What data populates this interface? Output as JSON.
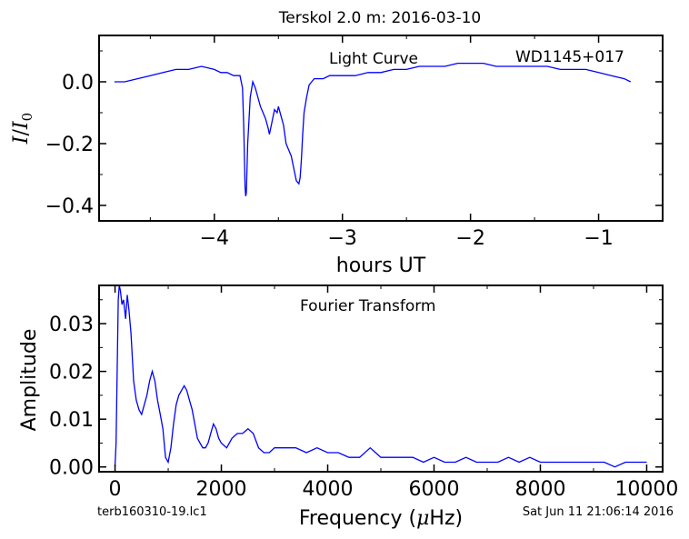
{
  "figure_title": "Terskol 2.0 m:  2016-03-10",
  "footer_left": "terb160310-19.lc1",
  "footer_right": "Sat Jun 11 21:06:14 2016",
  "chart_data": [
    {
      "type": "line",
      "name": "light-curve",
      "annotation_left": "Light Curve",
      "annotation_right": "WD1145+017",
      "xlabel": "hours UT",
      "ylabel": "I/I0",
      "ylabel_parts": {
        "main": "I",
        "slash": "/",
        "denom": "I",
        "sub": "0"
      },
      "xlim": [
        -4.9,
        -0.5
      ],
      "ylim": [
        -0.45,
        0.15
      ],
      "xticks": [
        -4,
        -3,
        -2,
        -1
      ],
      "xtick_labels": [
        "−4",
        "−3",
        "−2",
        "−1"
      ],
      "yticks": [
        0.0,
        -0.2,
        -0.4
      ],
      "ytick_labels": [
        "0.0",
        "−0.2",
        "−0.4"
      ],
      "color": "#0000ff",
      "x": [
        -4.78,
        -4.7,
        -4.6,
        -4.5,
        -4.4,
        -4.3,
        -4.2,
        -4.1,
        -4.0,
        -3.95,
        -3.9,
        -3.85,
        -3.82,
        -3.8,
        -3.78,
        -3.77,
        -3.76,
        -3.755,
        -3.75,
        -3.74,
        -3.72,
        -3.7,
        -3.68,
        -3.66,
        -3.64,
        -3.62,
        -3.6,
        -3.58,
        -3.57,
        -3.55,
        -3.53,
        -3.51,
        -3.5,
        -3.48,
        -3.46,
        -3.44,
        -3.42,
        -3.4,
        -3.38,
        -3.36,
        -3.34,
        -3.33,
        -3.32,
        -3.31,
        -3.3,
        -3.28,
        -3.26,
        -3.24,
        -3.22,
        -3.2,
        -3.15,
        -3.1,
        -3.0,
        -2.9,
        -2.8,
        -2.7,
        -2.6,
        -2.5,
        -2.4,
        -2.3,
        -2.2,
        -2.1,
        -2.0,
        -1.9,
        -1.8,
        -1.7,
        -1.6,
        -1.5,
        -1.4,
        -1.3,
        -1.2,
        -1.1,
        -1.0,
        -0.9,
        -0.8,
        -0.75
      ],
      "y": [
        0.0,
        0.0,
        0.01,
        0.02,
        0.03,
        0.04,
        0.04,
        0.05,
        0.04,
        0.03,
        0.03,
        0.02,
        0.02,
        0.02,
        -0.02,
        -0.15,
        -0.34,
        -0.37,
        -0.36,
        -0.2,
        -0.05,
        0.0,
        -0.02,
        -0.05,
        -0.08,
        -0.1,
        -0.12,
        -0.15,
        -0.17,
        -0.13,
        -0.09,
        -0.1,
        -0.08,
        -0.11,
        -0.14,
        -0.2,
        -0.22,
        -0.24,
        -0.28,
        -0.32,
        -0.33,
        -0.31,
        -0.25,
        -0.17,
        -0.1,
        -0.05,
        -0.01,
        0.0,
        0.01,
        0.01,
        0.01,
        0.02,
        0.02,
        0.02,
        0.03,
        0.03,
        0.04,
        0.04,
        0.05,
        0.05,
        0.05,
        0.06,
        0.06,
        0.06,
        0.05,
        0.05,
        0.05,
        0.05,
        0.05,
        0.04,
        0.04,
        0.04,
        0.03,
        0.02,
        0.01,
        0.0
      ]
    },
    {
      "type": "line",
      "name": "fourier-transform",
      "annotation": "Fourier Transform",
      "xlabel": "Frequency (μHz)",
      "xlabel_parts": {
        "pre": "Frequency (",
        "mu": "μ",
        "post": "Hz)"
      },
      "ylabel": "Amplitude",
      "xlim": [
        -300,
        10300
      ],
      "ylim": [
        -0.001,
        0.038
      ],
      "xticks": [
        0,
        2000,
        4000,
        6000,
        8000,
        10000
      ],
      "xtick_labels": [
        "0",
        "2000",
        "4000",
        "6000",
        "8000",
        "10000"
      ],
      "yticks": [
        0.0,
        0.01,
        0.02,
        0.03
      ],
      "ytick_labels": [
        "0.00",
        "0.01",
        "0.02",
        "0.03"
      ],
      "color": "#0000ff",
      "x": [
        0,
        20,
        40,
        60,
        80,
        100,
        130,
        160,
        200,
        230,
        260,
        300,
        350,
        400,
        450,
        500,
        550,
        600,
        650,
        700,
        750,
        800,
        850,
        900,
        950,
        1000,
        1050,
        1100,
        1150,
        1200,
        1250,
        1300,
        1350,
        1400,
        1450,
        1500,
        1550,
        1600,
        1650,
        1700,
        1750,
        1800,
        1850,
        1900,
        1950,
        2000,
        2100,
        2200,
        2300,
        2400,
        2500,
        2600,
        2700,
        2800,
        2900,
        3000,
        3200,
        3400,
        3600,
        3800,
        4000,
        4200,
        4400,
        4600,
        4800,
        4900,
        5000,
        5200,
        5400,
        5600,
        5800,
        6000,
        6200,
        6400,
        6600,
        6800,
        7000,
        7200,
        7400,
        7600,
        7800,
        8000,
        8200,
        8400,
        8600,
        8800,
        9000,
        9200,
        9400,
        9600,
        9800,
        10000
      ],
      "y": [
        0.0,
        0.005,
        0.02,
        0.035,
        0.038,
        0.037,
        0.034,
        0.035,
        0.031,
        0.036,
        0.033,
        0.028,
        0.018,
        0.014,
        0.012,
        0.011,
        0.013,
        0.015,
        0.018,
        0.02,
        0.018,
        0.014,
        0.011,
        0.008,
        0.002,
        0.001,
        0.004,
        0.009,
        0.013,
        0.015,
        0.016,
        0.017,
        0.016,
        0.014,
        0.012,
        0.009,
        0.006,
        0.005,
        0.004,
        0.004,
        0.005,
        0.007,
        0.009,
        0.008,
        0.006,
        0.005,
        0.004,
        0.006,
        0.007,
        0.007,
        0.008,
        0.007,
        0.004,
        0.003,
        0.003,
        0.004,
        0.004,
        0.004,
        0.003,
        0.004,
        0.003,
        0.003,
        0.002,
        0.002,
        0.004,
        0.003,
        0.002,
        0.002,
        0.002,
        0.002,
        0.001,
        0.002,
        0.001,
        0.001,
        0.002,
        0.001,
        0.001,
        0.001,
        0.002,
        0.001,
        0.002,
        0.001,
        0.001,
        0.001,
        0.001,
        0.001,
        0.001,
        0.001,
        0.0,
        0.001,
        0.001,
        0.001
      ]
    }
  ]
}
